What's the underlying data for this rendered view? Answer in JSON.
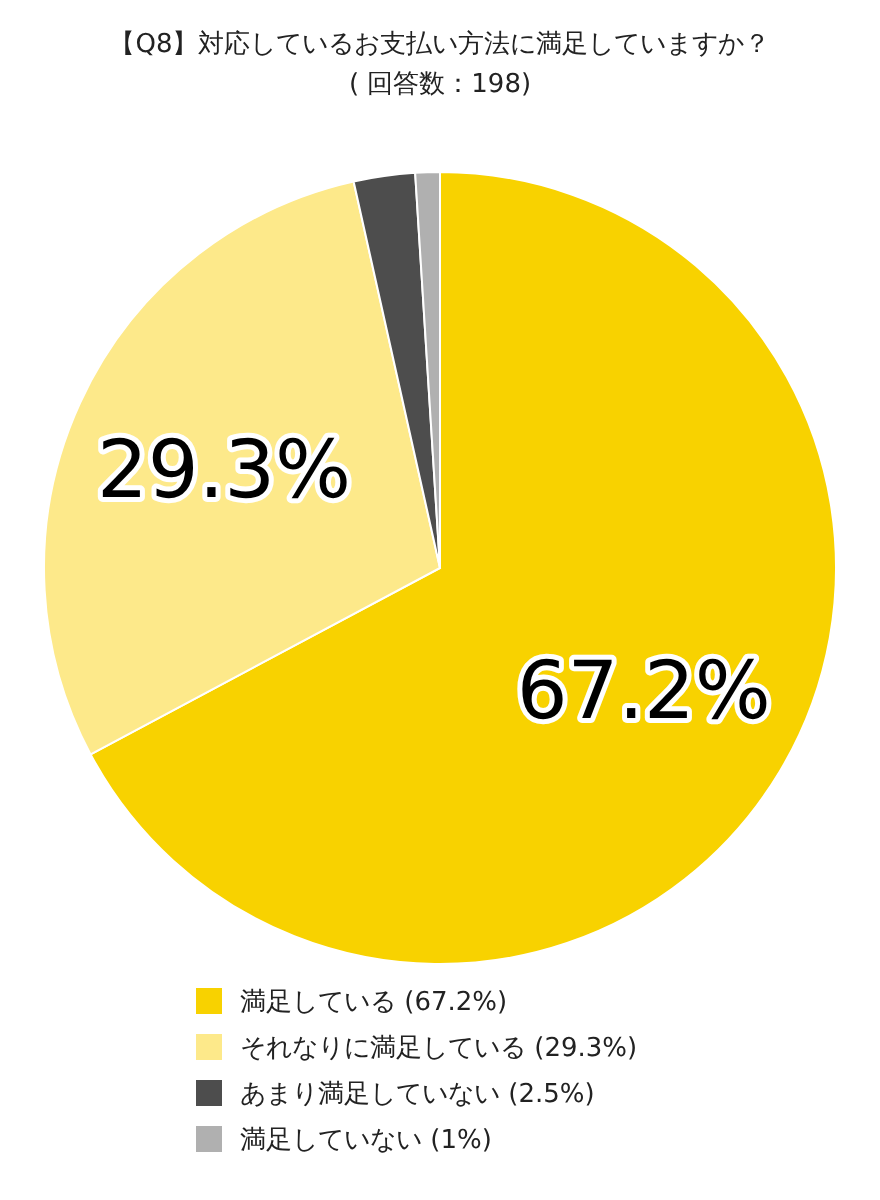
{
  "chart_data": {
    "type": "pie",
    "title": "【Q8】対応しているお支払い方法に満足していますか？",
    "subtitle": "( 回答数：198)",
    "categories": [
      "満足している (67.2%)",
      "それなりに満足している (29.3%)",
      "あまり満足していない (2.5%)",
      "満足していない (1%)"
    ],
    "values": [
      67.2,
      29.3,
      2.5,
      1
    ],
    "colors": [
      "#f8d200",
      "#fde98a",
      "#4d4d4d",
      "#b0b0b0"
    ],
    "value_labels": [
      "67.2%",
      "29.3%",
      null,
      null
    ],
    "legend": "bottom"
  }
}
